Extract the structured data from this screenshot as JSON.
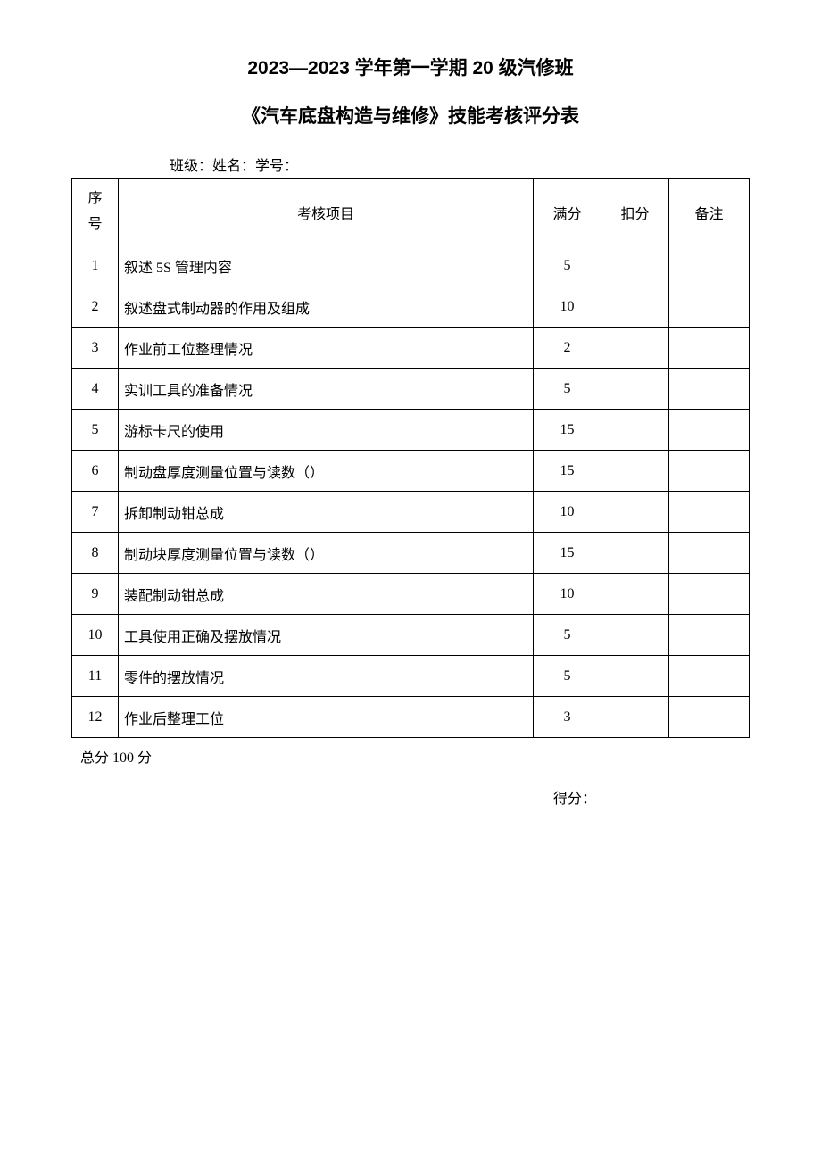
{
  "header": {
    "title_line1": "2023—2023 学年第一学期 20 级汽修班",
    "title_line2": "《汽车底盘构造与维修》技能考核评分表",
    "info_line": "班级：姓名：学号："
  },
  "table": {
    "columns": {
      "seq_line1": "序",
      "seq_line2": "号",
      "item": "考核项目",
      "full_score": "满分",
      "deduction": "扣分",
      "remark": "备注"
    },
    "col_widths": {
      "seq": 52,
      "score": 76,
      "deduct": 76,
      "remark": 90
    },
    "rows": [
      {
        "seq": "1",
        "item": "叙述 5S 管理内容",
        "score": "5",
        "deduct": "",
        "remark": ""
      },
      {
        "seq": "2",
        "item": "叙述盘式制动器的作用及组成",
        "score": "10",
        "deduct": "",
        "remark": ""
      },
      {
        "seq": "3",
        "item": "作业前工位整理情况",
        "score": "2",
        "deduct": "",
        "remark": ""
      },
      {
        "seq": "4",
        "item": "实训工具的准备情况",
        "score": "5",
        "deduct": "",
        "remark": ""
      },
      {
        "seq": "5",
        "item": "游标卡尺的使用",
        "score": "15",
        "deduct": "",
        "remark": ""
      },
      {
        "seq": "6",
        "item": "制动盘厚度测量位置与读数（）",
        "score": "15",
        "deduct": "",
        "remark": ""
      },
      {
        "seq": "7",
        "item": "拆卸制动钳总成",
        "score": "10",
        "deduct": "",
        "remark": ""
      },
      {
        "seq": "8",
        "item": "制动块厚度测量位置与读数（）",
        "score": "15",
        "deduct": "",
        "remark": ""
      },
      {
        "seq": "9",
        "item": "装配制动钳总成",
        "score": "10",
        "deduct": "",
        "remark": ""
      },
      {
        "seq": "10",
        "item": "工具使用正确及摆放情况",
        "score": "5",
        "deduct": "",
        "remark": ""
      },
      {
        "seq": "11",
        "item": "零件的摆放情况",
        "score": "5",
        "deduct": "",
        "remark": ""
      },
      {
        "seq": "12",
        "item": "作业后整理工位",
        "score": "3",
        "deduct": "",
        "remark": ""
      }
    ]
  },
  "footer": {
    "total": "总分 100 分",
    "score_label": "得分："
  },
  "style": {
    "page_bg": "#ffffff",
    "text_color": "#000000",
    "border_color": "#000000",
    "title_fontsize": 21,
    "body_fontsize": 16,
    "header_row_height": 74,
    "data_row_height": 46
  }
}
